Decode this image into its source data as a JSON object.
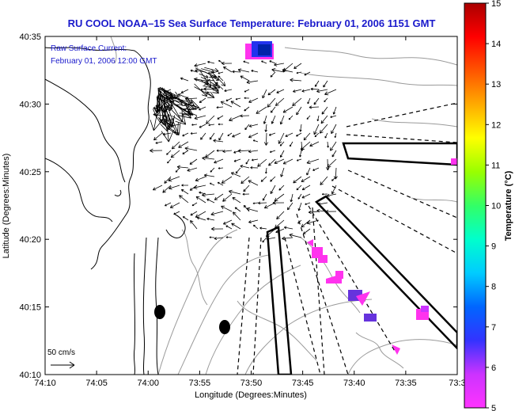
{
  "title": "RU COOL  NOAA–15  Sea Surface Temperature:  February 01, 2006 1151 GMT",
  "overlay": {
    "line1": "Raw Surface Current:",
    "line2": "February 01, 2006 12:00 GMT"
  },
  "scale_label": "50 cm/s",
  "x_axis": {
    "label": "Longitude (Degrees:Minutes)",
    "ticks": [
      "74:10",
      "74:05",
      "74:00",
      "73:55",
      "73:50",
      "73:45",
      "73:40",
      "73:35",
      "73:3"
    ]
  },
  "y_axis": {
    "label": "Latitude (Degrees:Minutes)",
    "ticks": [
      "40:35",
      "40:30",
      "40:25",
      "40:20",
      "40:15",
      "40:10"
    ]
  },
  "colorbar": {
    "label": "Temperature (°C)",
    "ticks": [
      "15",
      "14",
      "13",
      "12",
      "11",
      "10",
      "9",
      "8",
      "7",
      "6",
      "5"
    ],
    "range": [
      5,
      15
    ],
    "colors": [
      "#ff33ff",
      "#cc33ff",
      "#3333ff",
      "#0066ff",
      "#00ccff",
      "#00ffcc",
      "#33ff66",
      "#99ff00",
      "#ffff00",
      "#ffaa00",
      "#ff5500",
      "#ff0000",
      "#aa0000"
    ]
  },
  "sst_colors": {
    "cold_blue": "#2233ee",
    "magenta": "#ff33ee",
    "purple": "#6633dd"
  }
}
